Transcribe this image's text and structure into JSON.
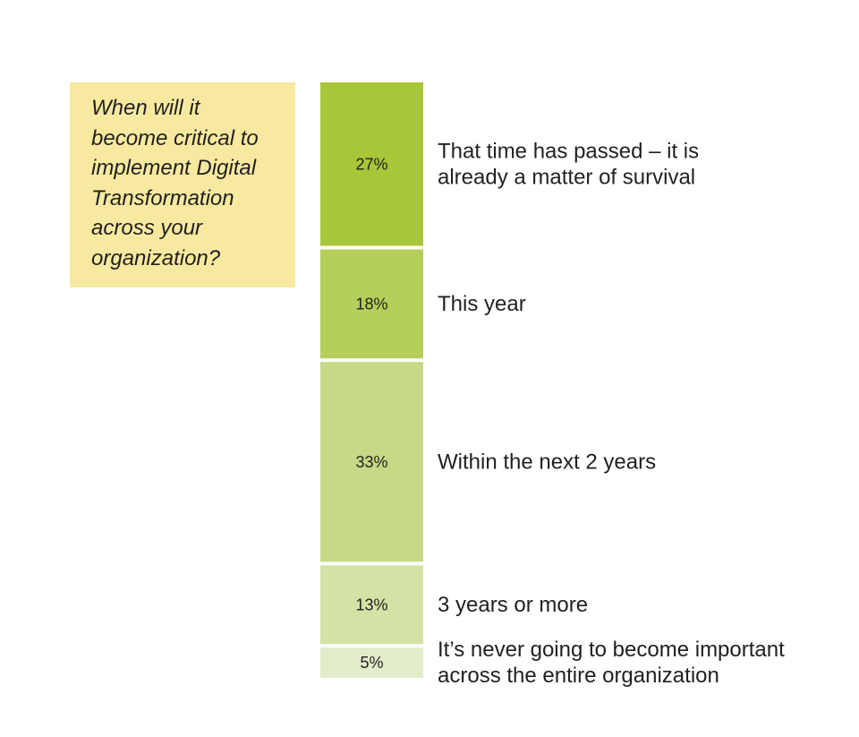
{
  "question": {
    "lines": [
      "When will it",
      "become critical to",
      "implement Digital",
      "Transformation",
      "across your",
      "organization?"
    ]
  },
  "chart_data": {
    "type": "bar",
    "stacked": true,
    "unit": "%",
    "categories": [
      "That time has passed – it is already a matter of survival",
      "This year",
      "Within the next 2 years",
      "3 years or more",
      "It’s never going to become important across the entire organization"
    ],
    "category_label_lines": [
      [
        "That time has passed – it is",
        "already a matter of survival"
      ],
      [
        "This year"
      ],
      [
        "Within the next 2 years"
      ],
      [
        "3 years or more"
      ],
      [
        "It’s never going to become important",
        "across the entire organization"
      ]
    ],
    "values": [
      27,
      18,
      33,
      13,
      5
    ],
    "value_labels": [
      "27%",
      "18%",
      "33%",
      "13%",
      "5%"
    ],
    "colors": [
      "#a8c63a",
      "#b5cf5b",
      "#c6d986",
      "#d4e2a6",
      "#e3ecca"
    ],
    "legend": "none",
    "grid": false
  }
}
